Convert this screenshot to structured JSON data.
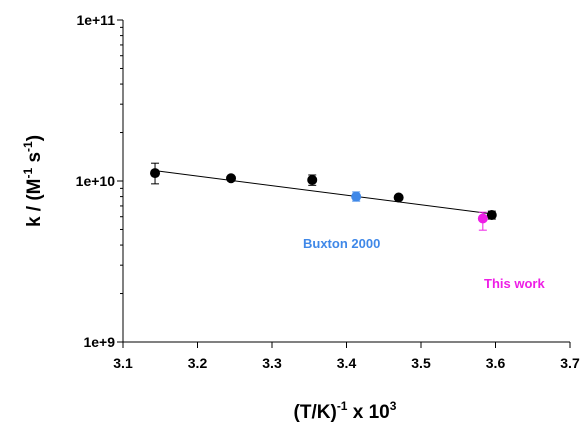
{
  "chart_data": {
    "type": "scatter",
    "xlabel": {
      "prefix": "(T/K)",
      "exp": "-1",
      "suffix": " x 10",
      "suffix_exp": "3"
    },
    "ylabel": {
      "prefix": "k / (M",
      "exp1": "-1",
      "mid": " s",
      "exp2": "-1",
      "suffix": ")"
    },
    "xlim": [
      3.1,
      3.7
    ],
    "ylim": [
      1000000000,
      100000000000
    ],
    "yscale": "log",
    "x_ticks": [
      "3.1",
      "3.2",
      "3.3",
      "3.4",
      "3.5",
      "3.6",
      "3.7"
    ],
    "y_ticks": [
      "1e+9",
      "1e+10",
      "1e+11"
    ],
    "grid": false,
    "series": [
      {
        "color": "#000000",
        "points": [
          {
            "x": 3.143,
            "y": 11200000000,
            "err_lo": 9600000000,
            "err_hi": 12900000000
          },
          {
            "x": 3.245,
            "y": 10400000000,
            "err_lo": 10200000000,
            "err_hi": 10600000000
          },
          {
            "x": 3.354,
            "y": 10150000000,
            "err_lo": 9400000000,
            "err_hi": 10900000000
          },
          {
            "x": 3.47,
            "y": 7900000000,
            "err_lo": 7750000000,
            "err_hi": 8050000000
          },
          {
            "x": 3.595,
            "y": 6150000000,
            "err_lo": 5800000000,
            "err_hi": 6500000000
          }
        ]
      },
      {
        "name": "Buxton 2000",
        "color": "#3f88e8",
        "points": [
          {
            "x": 3.413,
            "y": 8000000000,
            "err_lo": 7500000000,
            "err_hi": 8550000000
          }
        ]
      },
      {
        "name": "This work",
        "color": "#ee1ee6",
        "points": [
          {
            "x": 3.583,
            "y": 5850000000,
            "err_lo": 4950000000,
            "err_hi": 6400000000
          }
        ]
      }
    ],
    "fit_line": {
      "x": [
        3.143,
        3.595
      ],
      "y": [
        11600000000,
        6250000000
      ]
    },
    "annotations": [
      {
        "text": "Buxton 2000",
        "color": "#3f88e8"
      },
      {
        "text": "This work",
        "color": "#ee1ee6"
      }
    ]
  }
}
